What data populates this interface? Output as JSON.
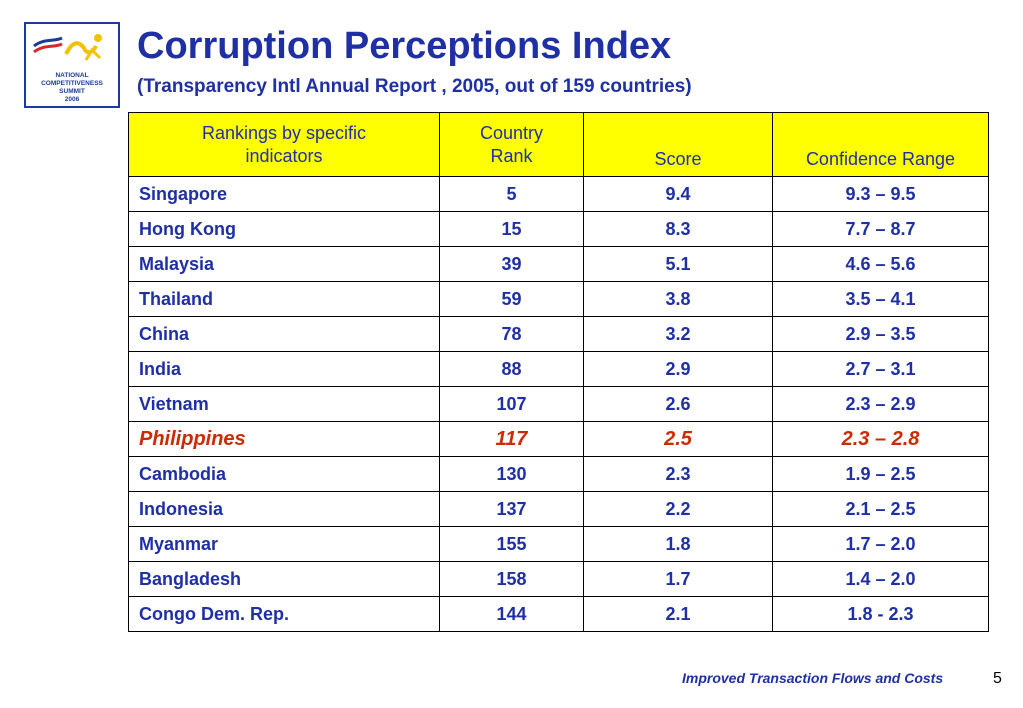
{
  "logo": {
    "lines": [
      "NATIONAL",
      "COMPETITIVENESS",
      "SUMMIT",
      "2006"
    ]
  },
  "title": "Corruption Perceptions Index",
  "subtitle": "(Transparency Intl Annual Report , 2005, out of 159 countries)",
  "table": {
    "headers": [
      [
        "Rankings by specific",
        "indicators"
      ],
      [
        "Country",
        "Rank"
      ],
      [
        "Score"
      ],
      [
        "Confidence Range"
      ]
    ],
    "rows": [
      {
        "name": "Singapore",
        "rank": "5",
        "score": "9.4",
        "range": "9.3 – 9.5"
      },
      {
        "name": "Hong Kong",
        "rank": "15",
        "score": "8.3",
        "range": "7.7 – 8.7"
      },
      {
        "name": "Malaysia",
        "rank": "39",
        "score": "5.1",
        "range": "4.6 – 5.6"
      },
      {
        "name": "Thailand",
        "rank": "59",
        "score": "3.8",
        "range": "3.5 – 4.1"
      },
      {
        "name": "China",
        "rank": "78",
        "score": "3.2",
        "range": "2.9 – 3.5"
      },
      {
        "name": "India",
        "rank": "88",
        "score": "2.9",
        "range": "2.7 – 3.1"
      },
      {
        "name": "Vietnam",
        "rank": "107",
        "score": "2.6",
        "range": "2.3 – 2.9"
      },
      {
        "name": "Philippines",
        "rank": "117",
        "score": "2.5",
        "range": "2.3 – 2.8"
      },
      {
        "name": "Cambodia",
        "rank": "130",
        "score": "2.3",
        "range": "1.9 – 2.5"
      },
      {
        "name": "Indonesia",
        "rank": "137",
        "score": "2.2",
        "range": "2.1 – 2.5"
      },
      {
        "name": "Myanmar",
        "rank": "155",
        "score": "1.8",
        "range": "1.7 – 2.0"
      },
      {
        "name": "Bangladesh",
        "rank": "158",
        "score": "1.7",
        "range": "1.4 – 2.0"
      },
      {
        "name": "Congo Dem. Rep.",
        "rank": "144",
        "score": "2.1",
        "range": "1.8 - 2.3"
      }
    ],
    "highlighted_row": "Philippines",
    "highlight_color": "#cc2a00",
    "header_bg": "#ffff00",
    "text_color": "#1f2fa5"
  },
  "footer": "Improved Transaction Flows and Costs",
  "page_number": "5"
}
